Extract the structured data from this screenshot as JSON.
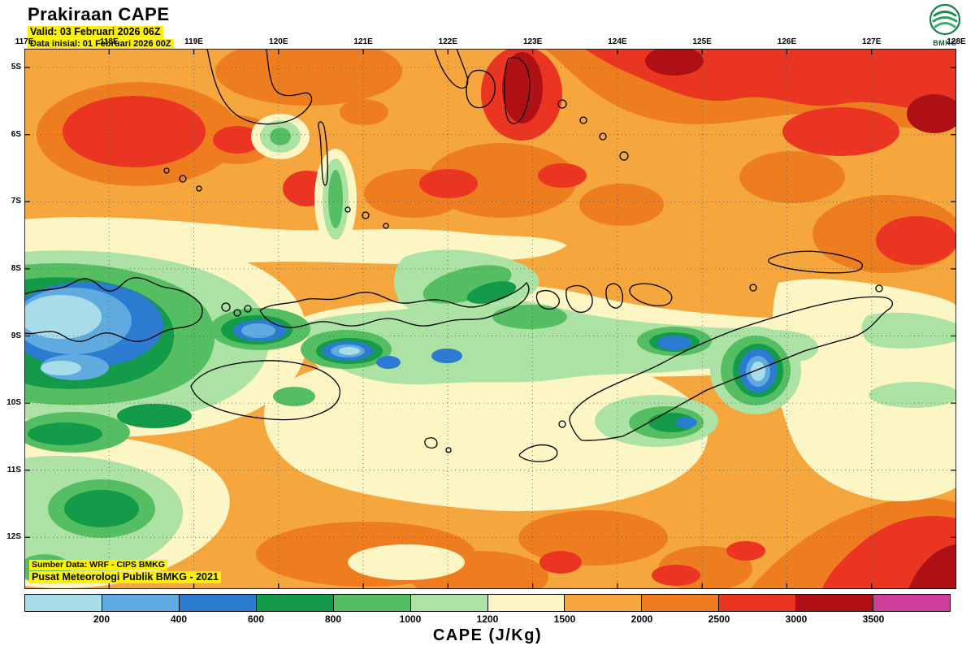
{
  "header": {
    "title": "Prakiraan CAPE",
    "valid_label": "Valid: 03 Februari 2026 06Z",
    "init_label": "Data inisial: 01 Februari 2026 00Z"
  },
  "logo": {
    "label": "BMKG"
  },
  "map": {
    "lon_labels": [
      "117E",
      "118E",
      "119E",
      "120E",
      "121E",
      "122E",
      "123E",
      "124E",
      "125E",
      "126E",
      "127E",
      "128E"
    ],
    "lat_labels": [
      "5S",
      "6S",
      "7S",
      "8S",
      "9S",
      "10S",
      "11S",
      "12S"
    ],
    "source_line1": "Sumber Data: WRF - CIPS BMKG",
    "source_line2": "Pusat Meteorologi Publik BMKG - 2021",
    "extent": {
      "lon_min": "117E",
      "lon_max": "128E",
      "lat_min": "5S",
      "lat_max": "12S"
    }
  },
  "colorbar": {
    "title": "CAPE (J/Kg)",
    "ticks": [
      "200",
      "400",
      "600",
      "800",
      "1000",
      "1200",
      "1500",
      "2000",
      "2500",
      "3000",
      "3500"
    ],
    "color_keys": [
      "pale_blue",
      "mid_blue",
      "blue",
      "dark_green",
      "green",
      "light_green",
      "cream",
      "orange",
      "dark_orange",
      "red",
      "dark_red",
      "magenta"
    ]
  },
  "palette": {
    "pale_blue": "#A9DCE9",
    "mid_blue": "#5FABE0",
    "blue": "#2B7BD1",
    "dark_green": "#139B49",
    "green": "#55BE62",
    "light_green": "#ACE2A4",
    "cream": "#FCF6C5",
    "orange": "#F5A63C",
    "dark_orange": "#EE7D20",
    "red": "#EA3523",
    "dark_red": "#AF1016",
    "magenta": "#CE3E9B",
    "highlight_yellow": "#FFF200"
  }
}
